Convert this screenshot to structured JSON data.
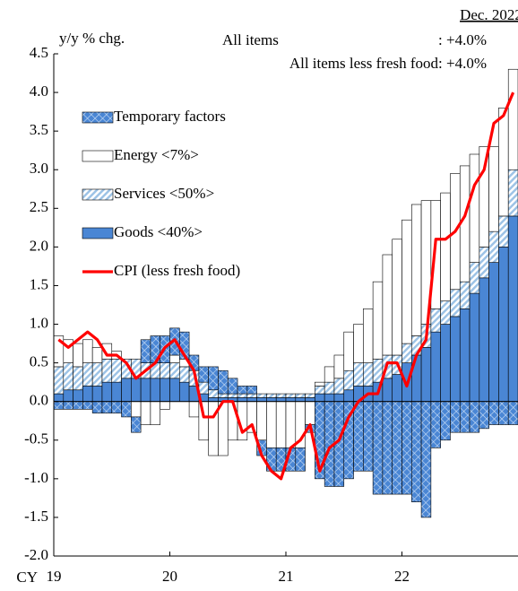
{
  "chart_data": {
    "type": "bar",
    "y_label": "y/y % chg.",
    "x_prefix": "CY",
    "annotations": {
      "date": "Dec. 2022",
      "all_items_label": "All items",
      "all_items_value": ": +4.0%",
      "core": "All items less fresh food: +4.0%"
    },
    "categories": [
      "19",
      null,
      null,
      null,
      null,
      null,
      null,
      null,
      null,
      null,
      null,
      null,
      "20",
      null,
      null,
      null,
      null,
      null,
      null,
      null,
      null,
      null,
      null,
      null,
      "21",
      null,
      null,
      null,
      null,
      null,
      null,
      null,
      null,
      null,
      null,
      null,
      "22",
      null,
      null,
      null,
      null,
      null,
      null,
      null,
      null,
      null,
      null,
      null
    ],
    "series": [
      {
        "name": "Goods <40%>",
        "color": "#4a86d4",
        "pattern": "solid",
        "values": [
          0.1,
          0.15,
          0.15,
          0.2,
          0.2,
          0.25,
          0.25,
          0.3,
          0.3,
          0.3,
          0.3,
          0.3,
          0.3,
          0.25,
          0.2,
          0.1,
          0.05,
          0.05,
          0.05,
          0.05,
          0.05,
          0.05,
          0.05,
          0.05,
          0.05,
          0.05,
          0.05,
          0.1,
          0.1,
          0.1,
          0.15,
          0.2,
          0.2,
          0.25,
          0.3,
          0.35,
          0.5,
          0.6,
          0.7,
          0.9,
          1.0,
          1.1,
          1.2,
          1.4,
          1.6,
          1.8,
          2.0,
          2.4
        ]
      },
      {
        "name": "Services <50%>",
        "color": "#9dc3e6",
        "pattern": "diagonal",
        "values": [
          0.35,
          0.35,
          0.3,
          0.3,
          0.3,
          0.3,
          0.3,
          0.25,
          0.25,
          0.2,
          0.2,
          0.2,
          0.2,
          0.2,
          0.2,
          0.15,
          0.1,
          0.05,
          0.05,
          0.05,
          0.05,
          0.05,
          0.05,
          0.05,
          0.05,
          0.05,
          0.05,
          0.1,
          0.15,
          0.2,
          0.25,
          0.3,
          0.3,
          0.3,
          0.3,
          0.25,
          0.25,
          0.25,
          0.3,
          0.3,
          0.3,
          0.35,
          0.35,
          0.4,
          0.4,
          0.4,
          0.4,
          0.6
        ]
      },
      {
        "name": "Energy <7%>",
        "color": "#ffffff",
        "pattern": "solid",
        "values": [
          0.4,
          0.3,
          0.3,
          0.3,
          0.2,
          0.2,
          0.1,
          0.0,
          -0.2,
          -0.3,
          -0.3,
          -0.1,
          0.1,
          0.1,
          -0.2,
          -0.5,
          -0.7,
          -0.7,
          -0.5,
          -0.5,
          -0.4,
          -0.5,
          -0.6,
          -0.6,
          -0.6,
          -0.6,
          -0.3,
          0.05,
          0.2,
          0.3,
          0.5,
          0.5,
          0.7,
          1.0,
          1.3,
          1.5,
          1.6,
          1.7,
          1.6,
          1.4,
          1.4,
          1.5,
          1.5,
          1.4,
          1.3,
          1.1,
          1.4,
          1.3
        ]
      },
      {
        "name": "Temporary factors",
        "color": "#4a86d4",
        "pattern": "crosshatch",
        "values": [
          -0.1,
          -0.1,
          -0.1,
          -0.1,
          -0.15,
          -0.15,
          -0.15,
          -0.2,
          -0.2,
          0.3,
          0.35,
          0.35,
          0.35,
          0.35,
          0.2,
          0.2,
          0.3,
          0.3,
          0.2,
          0.1,
          0.1,
          -0.2,
          -0.3,
          -0.3,
          -0.3,
          -0.3,
          -0.1,
          -1.0,
          -1.1,
          -1.1,
          -1.0,
          -0.9,
          -0.9,
          -1.2,
          -1.2,
          -1.2,
          -1.2,
          -1.3,
          -1.5,
          -0.6,
          -0.5,
          -0.4,
          -0.4,
          -0.4,
          -0.35,
          -0.3,
          -0.3,
          -0.3
        ]
      },
      {
        "name": "CPI (less fresh food)",
        "color": "#ff0000",
        "type": "line",
        "values": [
          0.8,
          0.7,
          0.8,
          0.9,
          0.8,
          0.6,
          0.6,
          0.5,
          0.3,
          0.4,
          0.5,
          0.7,
          0.8,
          0.6,
          0.4,
          -0.2,
          -0.2,
          0.0,
          0.0,
          -0.4,
          -0.3,
          -0.7,
          -0.9,
          -1.0,
          -0.6,
          -0.5,
          -0.3,
          -0.9,
          -0.6,
          -0.5,
          -0.2,
          0.0,
          0.1,
          0.1,
          0.5,
          0.5,
          0.2,
          0.6,
          0.8,
          2.1,
          2.1,
          2.2,
          2.4,
          2.8,
          3.0,
          3.6,
          3.7,
          4.0
        ]
      }
    ],
    "legend_order": [
      3,
      2,
      1,
      0,
      4
    ],
    "ylim": [
      -2.0,
      4.5
    ],
    "yticks": [
      4.5,
      {
        "value": 4.0,
        "label": "4.0"
      },
      3.5,
      {
        "value": 3.0,
        "label": "3.0"
      },
      2.5,
      {
        "value": 2.0,
        "label": "2.0"
      },
      1.5,
      {
        "value": 1.0,
        "label": "1.0"
      },
      0.5,
      {
        "value": 0.0,
        "label": "0.0"
      },
      -0.5,
      {
        "value": -1.0,
        "label": "-1.0"
      },
      -1.5,
      {
        "value": -2.0,
        "label": "-2.0"
      }
    ],
    "grid": false
  }
}
